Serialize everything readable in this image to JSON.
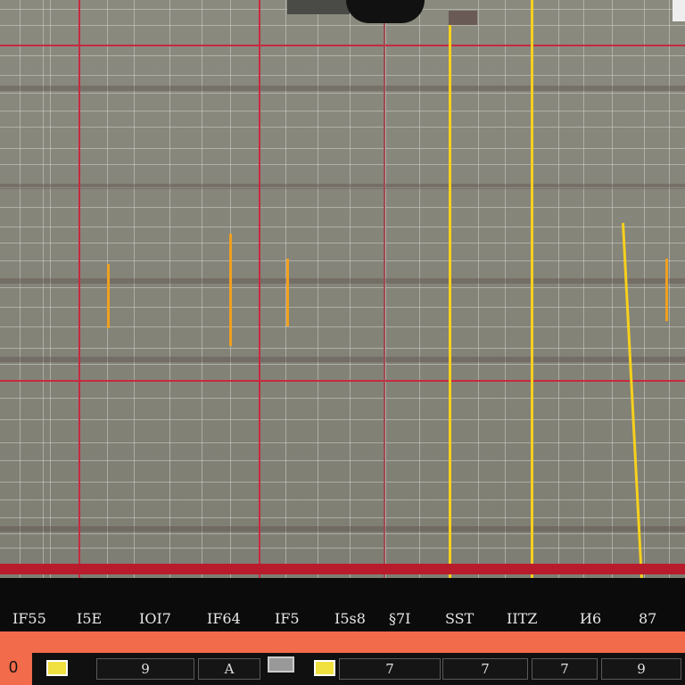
{
  "grid": {
    "title": ""
  },
  "time_strip": {
    "labels": [
      "IF55",
      "I5E",
      "IOI7",
      "IF64",
      "IF5",
      "I5s8",
      "§7I",
      "SST",
      "IITZ",
      "И6",
      "87"
    ]
  },
  "transport": {
    "zero_label": "0",
    "slots": [
      "9",
      "A",
      "7",
      "7",
      "7",
      "9"
    ]
  },
  "colors": {
    "grid_bg": "#8a8a7f",
    "grid_line": "#d2d2cd",
    "red_line": "#c62a40",
    "yellow_marker": "#f7d01c",
    "transport_bg": "#f26b4a",
    "strip_bg": "#0b0b0b"
  }
}
